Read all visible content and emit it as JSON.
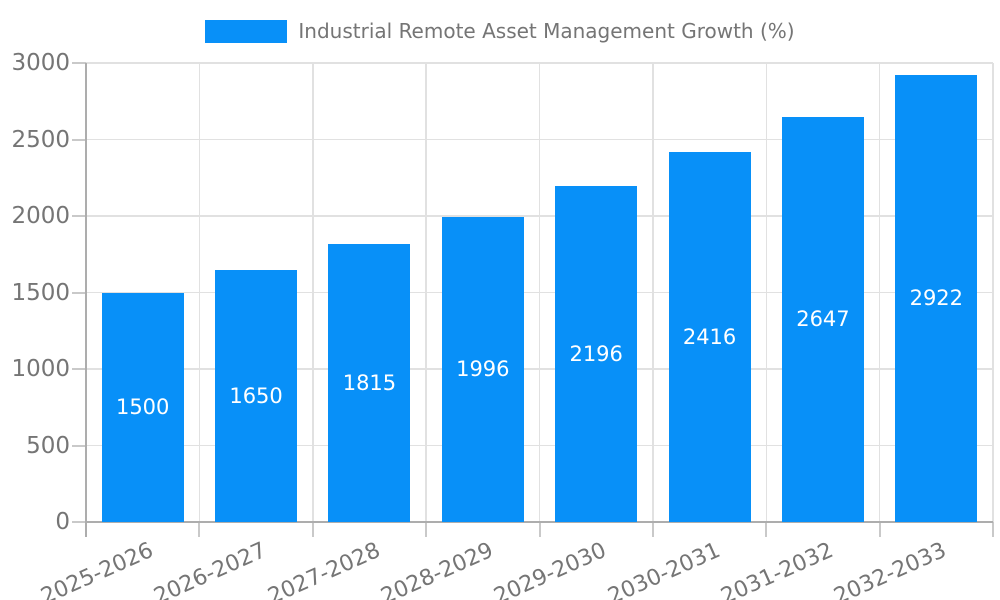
{
  "chart_data": {
    "type": "bar",
    "title": "Industrial Remote Asset Management Growth (%)",
    "categories": [
      "2025-2026",
      "2026-2027",
      "2027-2028",
      "2028-2029",
      "2029-2030",
      "2030-2031",
      "2031-2032",
      "2032-2033"
    ],
    "series": [
      {
        "name": "Industrial Remote Asset Management Growth (%)",
        "values": [
          1500,
          1650,
          1815,
          1996,
          2196,
          2416,
          2647,
          2922
        ]
      }
    ],
    "xlabel": "",
    "ylabel": "",
    "ylim": [
      0,
      3000
    ],
    "yticks": [
      0,
      500,
      1000,
      1500,
      2000,
      2500,
      3000
    ],
    "grid": true,
    "legend_position": "top-center",
    "value_labels": "inside-center",
    "colors": {
      "bar": "#0890F8",
      "bar_label": "#FFFFFF",
      "axis_text": "#757575",
      "gridline": "#E1E1E1",
      "axis_line": "#ADADAD",
      "tick": "#C9C9C9",
      "background": "#FFFFFF"
    }
  }
}
